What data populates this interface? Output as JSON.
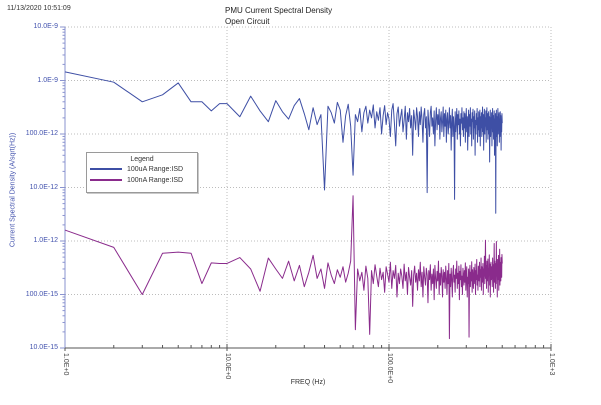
{
  "window": {
    "timestamp": "11/13/2020 10:51:09"
  },
  "chart_data": {
    "type": "line",
    "title": "PMU Current Spectral Density",
    "subtitle": "Open Circuit",
    "xlabel": "FREQ (Hz)",
    "ylabel": "Current Spectral Density (A/sqrt(Hz))",
    "x_scale": "log",
    "y_scale": "log",
    "xlim": [
      1,
      1000
    ],
    "ylim": [
      1e-14,
      1e-08
    ],
    "grid": "major decades, dotted",
    "x_ticks": [
      {
        "value": 1,
        "label": "1.0E+0"
      },
      {
        "value": 10,
        "label": "10.0E+0"
      },
      {
        "value": 100,
        "label": "100.0E+0"
      },
      {
        "value": 1000,
        "label": "1.0E+3"
      }
    ],
    "y_ticks": [
      {
        "value": 1e-08,
        "label": "10.0E-9"
      },
      {
        "value": 1e-09,
        "label": "1.0E-9"
      },
      {
        "value": 1e-10,
        "label": "100.0E-12"
      },
      {
        "value": 1e-11,
        "label": "10.0E-12"
      },
      {
        "value": 1e-12,
        "label": "1.0E-12"
      },
      {
        "value": 1e-13,
        "label": "100.0E-15"
      },
      {
        "value": 1e-14,
        "label": "10.0E-15"
      }
    ],
    "axis_colors": {
      "y_axis": "#8a93cf",
      "y_labels": "#4353ae",
      "x_axis": "#555555",
      "x_labels": "#444444",
      "grid": "#bcbcbc"
    },
    "legend": {
      "title": "Legend",
      "position": "upper-left-inside",
      "entries": [
        {
          "label": "100uA Range:ISD",
          "color": "#3e4fa5"
        },
        {
          "label": "100nA Range:ISD",
          "color": "#8a2b8c"
        }
      ]
    },
    "freq_bins_hz": {
      "note": "segments [start_hz, step_hz, count]; bins shared by both series; spectra end near 500 Hz",
      "segments": [
        [
          1,
          1,
          10
        ],
        [
          12,
          2,
          245
        ]
      ]
    },
    "series": [
      {
        "name": "100uA Range:ISD",
        "color": "#3e4fa5",
        "unit": "A/sqrt(Hz)",
        "value_scale": 1e-12,
        "values": [
          1450,
          930,
          400,
          540,
          900,
          400,
          400,
          270,
          370,
          370,
          210,
          510,
          270,
          170,
          420,
          260,
          190,
          340,
          460,
          240,
          120,
          310,
          150,
          230,
          9,
          330,
          250,
          160,
          390,
          280,
          70,
          220,
          360,
          140,
          17,
          230,
          170,
          300,
          110,
          250,
          330,
          160,
          280,
          200,
          350,
          130,
          260,
          180,
          310,
          100,
          220,
          340,
          150,
          250,
          190,
          90,
          280,
          370,
          160,
          60,
          240,
          320,
          140,
          210,
          290,
          110,
          180,
          330,
          80,
          250,
          170,
          300,
          130,
          220,
          40,
          280,
          190,
          120,
          310,
          210,
          90,
          260,
          150,
          320,
          180,
          70,
          230,
          300,
          130,
          210,
          8,
          280,
          160,
          90,
          250,
          330,
          140,
          200,
          100,
          270,
          60,
          180,
          310,
          120,
          230,
          150,
          290,
          80,
          200,
          260,
          110,
          170,
          320,
          90,
          240,
          140,
          280,
          70,
          190,
          250,
          100,
          160,
          310,
          130,
          220,
          50,
          170,
          290,
          90,
          210,
          140,
          6,
          260,
          110,
          180,
          300,
          80,
          230,
          150,
          270,
          100,
          190,
          60,
          240,
          160,
          310,
          120,
          200,
          90,
          260,
          130,
          240,
          70,
          180,
          300,
          110,
          210,
          50,
          160,
          280,
          90,
          230,
          140,
          310,
          100,
          190,
          60,
          250,
          170,
          290,
          80,
          210,
          130,
          270,
          40,
          180,
          100,
          240,
          150,
          300,
          70,
          200,
          120,
          260,
          90,
          170,
          280,
          60,
          210,
          130,
          250,
          90,
          180,
          320,
          110,
          230,
          50,
          160,
          290,
          100,
          200,
          140,
          270,
          70,
          190,
          310,
          120,
          240,
          80,
          170,
          260,
          100,
          210,
          30,
          150,
          280,
          90,
          200,
          130,
          250,
          60,
          180,
          300,
          110,
          220,
          80,
          160,
          270,
          40,
          190,
          120,
          240,
          3.3,
          150,
          280,
          90,
          210,
          60,
          170,
          300,
          100,
          230,
          130,
          250,
          70,
          190,
          90,
          260,
          140,
          220,
          50,
          170,
          110,
          240,
          160
        ]
      },
      {
        "name": "100nA Range:ISD",
        "color": "#8a2b8c",
        "unit": "A/sqrt(Hz)",
        "value_scale": 1e-15,
        "values": [
          1600,
          760,
          100,
          590,
          620,
          590,
          160,
          390,
          380,
          380,
          490,
          300,
          115,
          480,
          300,
          200,
          420,
          180,
          350,
          140,
          260,
          540,
          200,
          300,
          130,
          390,
          230,
          160,
          290,
          210,
          330,
          170,
          250,
          420,
          7000,
          22,
          300,
          180,
          260,
          120,
          340,
          200,
          18,
          280,
          160,
          360,
          220,
          140,
          310,
          190,
          260,
          110,
          330,
          240,
          170,
          400,
          130,
          280,
          200,
          350,
          90,
          250,
          160,
          300,
          220,
          130,
          370,
          180,
          260,
          100,
          320,
          210,
          150,
          280,
          60,
          230,
          340,
          170,
          250,
          120,
          290,
          180,
          400,
          140,
          260,
          90,
          330,
          210,
          150,
          310,
          230,
          70,
          280,
          190,
          360,
          120,
          240,
          160,
          300,
          80,
          350,
          200,
          130,
          270,
          180,
          420,
          100,
          250,
          150,
          320,
          220,
          90,
          290,
          170,
          260,
          130,
          340,
          200,
          100,
          280,
          160,
          380,
          15,
          240,
          140,
          310,
          190,
          90,
          260,
          350,
          170,
          230,
          110,
          300,
          200,
          420,
          130,
          250,
          160,
          340,
          80,
          270,
          190,
          360,
          140,
          220,
          100,
          310,
          230,
          150,
          280,
          170,
          390,
          120,
          240,
          330,
          90,
          210,
          160,
          300,
          16,
          230,
          350,
          140,
          260,
          180,
          410,
          110,
          290,
          200,
          130,
          320,
          240,
          160,
          370,
          100,
          280,
          190,
          450,
          150,
          230,
          120,
          340,
          260,
          180,
          400,
          140,
          290,
          210,
          480,
          120,
          330,
          250,
          170,
          380,
          100,
          300,
          220,
          520,
          160,
          280,
          1030,
          200,
          350,
          130,
          420,
          240,
          180,
          460,
          110,
          310,
          230,
          550,
          150,
          370,
          90,
          280,
          400,
          190,
          330,
          240,
          140,
          480,
          200,
          360,
          110,
          300,
          900,
          170,
          420,
          250,
          130,
          380,
          220,
          980,
          160,
          340,
          90,
          450,
          270,
          190,
          540,
          120,
          310,
          230,
          700,
          150,
          400,
          260,
          180,
          490,
          340,
          210,
          560,
          380
        ]
      }
    ]
  }
}
